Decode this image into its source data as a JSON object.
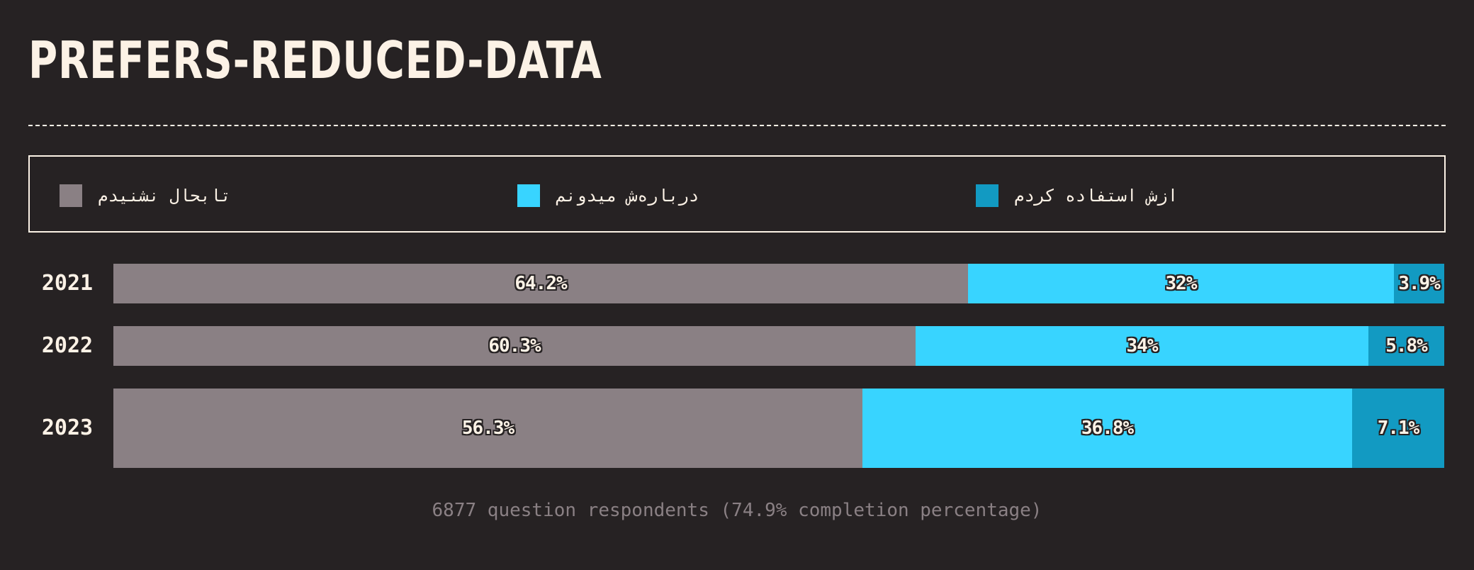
{
  "chart_data": {
    "type": "bar",
    "orientation": "horizontal",
    "stacked": true,
    "title": "PREFERS-REDUCED-DATA",
    "categories": [
      "2021",
      "2022",
      "2023"
    ],
    "series": [
      {
        "name": "تابحال نشنیدم",
        "color": "#8a8084",
        "values": [
          64.2,
          60.3,
          56.3
        ],
        "labels": [
          "64.2%",
          "60.3%",
          "56.3%"
        ]
      },
      {
        "name": "درباره‌ش میدونم",
        "color": "#38d4ff",
        "values": [
          32,
          34,
          36.8
        ],
        "labels": [
          "32%",
          "34%",
          "36.8%"
        ]
      },
      {
        "name": "ازش استفاده کردم",
        "color": "#129ac2",
        "values": [
          3.9,
          5.8,
          7.1
        ],
        "labels": [
          "3.9%",
          "5.8%",
          "7.1%"
        ]
      }
    ],
    "xlim": [
      0,
      100
    ],
    "legend_position": "top",
    "grid": false
  },
  "footnote": "6877 question respondents (74.9% completion percentage)",
  "colors": {
    "background": "#262223",
    "text": "#fcf2e6",
    "muted": "#8a8084"
  }
}
